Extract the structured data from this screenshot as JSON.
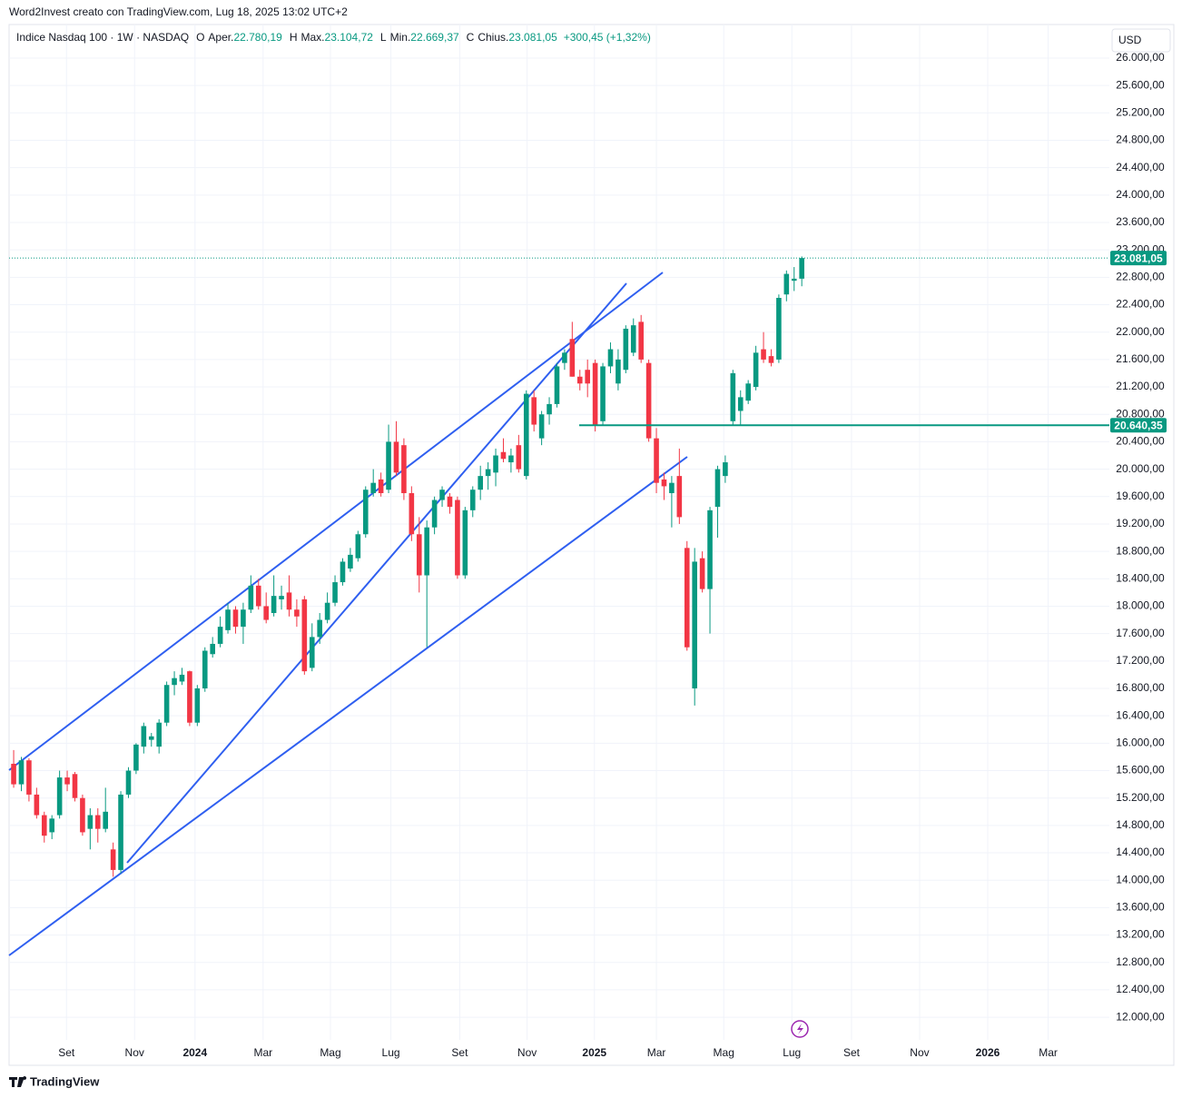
{
  "chart_data": {
    "type": "candlestick",
    "watermark": "Word2Invest creato con TradingView.com, Lug 18, 2025 13:02 UTC+2",
    "symbol": "Indice Nasdaq 100 · 1W · NASDAQ",
    "legend": [
      {
        "key": "O",
        "name": "Aper.",
        "label": "22.780,19"
      },
      {
        "key": "H",
        "name": "Max.",
        "label": "23.104,72"
      },
      {
        "key": "L",
        "name": "Min.",
        "label": "22.669,37"
      },
      {
        "key": "C",
        "name": "Chius.",
        "label": "23.081,05"
      }
    ],
    "change": "+300,45 (+1,32%)",
    "currency": "USD",
    "brand": "TradingView",
    "up_color": "#089981",
    "down_color": "#f23645",
    "grid": true,
    "candles": [
      {
        "o": 15700,
        "h": 15900,
        "l": 15350,
        "c": 15400
      },
      {
        "o": 15400,
        "h": 15800,
        "l": 15300,
        "c": 15750
      },
      {
        "o": 15750,
        "h": 15780,
        "l": 15150,
        "c": 15250
      },
      {
        "o": 15250,
        "h": 15350,
        "l": 14900,
        "c": 14950
      },
      {
        "o": 14950,
        "h": 15000,
        "l": 14550,
        "c": 14650
      },
      {
        "o": 14700,
        "h": 14950,
        "l": 14600,
        "c": 14900
      },
      {
        "o": 14950,
        "h": 15600,
        "l": 14900,
        "c": 15500
      },
      {
        "o": 15500,
        "h": 15600,
        "l": 15300,
        "c": 15400
      },
      {
        "o": 15550,
        "h": 15580,
        "l": 15150,
        "c": 15200
      },
      {
        "o": 15200,
        "h": 15250,
        "l": 14650,
        "c": 14700
      },
      {
        "o": 14750,
        "h": 15050,
        "l": 14450,
        "c": 14950
      },
      {
        "o": 14950,
        "h": 15050,
        "l": 14550,
        "c": 14750
      },
      {
        "o": 14750,
        "h": 15350,
        "l": 14700,
        "c": 15000
      },
      {
        "o": 14450,
        "h": 14550,
        "l": 14050,
        "c": 14150
      },
      {
        "o": 14150,
        "h": 15300,
        "l": 14100,
        "c": 15250
      },
      {
        "o": 15250,
        "h": 15650,
        "l": 15200,
        "c": 15600
      },
      {
        "o": 15600,
        "h": 16000,
        "l": 15550,
        "c": 15980
      },
      {
        "o": 15950,
        "h": 16300,
        "l": 15850,
        "c": 16250
      },
      {
        "o": 16050,
        "h": 16150,
        "l": 15950,
        "c": 16100
      },
      {
        "o": 15950,
        "h": 16350,
        "l": 15850,
        "c": 16300
      },
      {
        "o": 16300,
        "h": 16900,
        "l": 16250,
        "c": 16850
      },
      {
        "o": 16850,
        "h": 17050,
        "l": 16700,
        "c": 16950
      },
      {
        "o": 16900,
        "h": 17100,
        "l": 16850,
        "c": 17000
      },
      {
        "o": 17050,
        "h": 17060,
        "l": 16250,
        "c": 16300
      },
      {
        "o": 16300,
        "h": 16850,
        "l": 16250,
        "c": 16800
      },
      {
        "o": 16800,
        "h": 17400,
        "l": 16750,
        "c": 17350
      },
      {
        "o": 17300,
        "h": 17550,
        "l": 17250,
        "c": 17450
      },
      {
        "o": 17450,
        "h": 17850,
        "l": 17400,
        "c": 17700
      },
      {
        "o": 17650,
        "h": 18050,
        "l": 17600,
        "c": 17950
      },
      {
        "o": 17950,
        "h": 18000,
        "l": 17600,
        "c": 17700
      },
      {
        "o": 17700,
        "h": 18050,
        "l": 17450,
        "c": 17950
      },
      {
        "o": 17950,
        "h": 18450,
        "l": 17900,
        "c": 18300
      },
      {
        "o": 18300,
        "h": 18400,
        "l": 17950,
        "c": 18000
      },
      {
        "o": 18000,
        "h": 18200,
        "l": 17750,
        "c": 17800
      },
      {
        "o": 17900,
        "h": 18450,
        "l": 17850,
        "c": 18150
      },
      {
        "o": 18100,
        "h": 18300,
        "l": 17950,
        "c": 18150
      },
      {
        "o": 18200,
        "h": 18450,
        "l": 17850,
        "c": 17950
      },
      {
        "o": 17950,
        "h": 18100,
        "l": 17700,
        "c": 17850
      },
      {
        "o": 18100,
        "h": 18150,
        "l": 17000,
        "c": 17050
      },
      {
        "o": 17100,
        "h": 17750,
        "l": 17050,
        "c": 17550
      },
      {
        "o": 17550,
        "h": 17900,
        "l": 17450,
        "c": 17800
      },
      {
        "o": 17800,
        "h": 18200,
        "l": 17750,
        "c": 18050
      },
      {
        "o": 18050,
        "h": 18450,
        "l": 18000,
        "c": 18350
      },
      {
        "o": 18350,
        "h": 18700,
        "l": 18300,
        "c": 18650
      },
      {
        "o": 18550,
        "h": 18850,
        "l": 18500,
        "c": 18750
      },
      {
        "o": 18700,
        "h": 19100,
        "l": 18650,
        "c": 19050
      },
      {
        "o": 19050,
        "h": 19750,
        "l": 19000,
        "c": 19700
      },
      {
        "o": 19650,
        "h": 20000,
        "l": 19600,
        "c": 19800
      },
      {
        "o": 19850,
        "h": 19950,
        "l": 19600,
        "c": 19650
      },
      {
        "o": 19700,
        "h": 20650,
        "l": 19650,
        "c": 20400
      },
      {
        "o": 20400,
        "h": 20700,
        "l": 19900,
        "c": 19950
      },
      {
        "o": 20350,
        "h": 20450,
        "l": 19550,
        "c": 19650
      },
      {
        "o": 19650,
        "h": 19750,
        "l": 18950,
        "c": 19050
      },
      {
        "o": 19050,
        "h": 19300,
        "l": 18200,
        "c": 18450
      },
      {
        "o": 18450,
        "h": 19250,
        "l": 17400,
        "c": 19150
      },
      {
        "o": 19150,
        "h": 19600,
        "l": 19050,
        "c": 19550
      },
      {
        "o": 19550,
        "h": 19750,
        "l": 19450,
        "c": 19700
      },
      {
        "o": 19600,
        "h": 19650,
        "l": 19350,
        "c": 19450
      },
      {
        "o": 19550,
        "h": 19600,
        "l": 18400,
        "c": 18450
      },
      {
        "o": 18450,
        "h": 19450,
        "l": 18400,
        "c": 19400
      },
      {
        "o": 19400,
        "h": 19750,
        "l": 19300,
        "c": 19700
      },
      {
        "o": 19700,
        "h": 20050,
        "l": 19550,
        "c": 19900
      },
      {
        "o": 19900,
        "h": 20100,
        "l": 19700,
        "c": 20000
      },
      {
        "o": 19950,
        "h": 20300,
        "l": 19750,
        "c": 20200
      },
      {
        "o": 20250,
        "h": 20450,
        "l": 20100,
        "c": 20150
      },
      {
        "o": 20100,
        "h": 20300,
        "l": 19950,
        "c": 20200
      },
      {
        "o": 20350,
        "h": 20500,
        "l": 19950,
        "c": 20000
      },
      {
        "o": 19900,
        "h": 21150,
        "l": 19850,
        "c": 21100
      },
      {
        "o": 21050,
        "h": 21150,
        "l": 20550,
        "c": 20650
      },
      {
        "o": 20450,
        "h": 20850,
        "l": 20350,
        "c": 20800
      },
      {
        "o": 20800,
        "h": 21050,
        "l": 20650,
        "c": 20950
      },
      {
        "o": 20950,
        "h": 21550,
        "l": 20900,
        "c": 21500
      },
      {
        "o": 21550,
        "h": 21750,
        "l": 21450,
        "c": 21700
      },
      {
        "o": 21900,
        "h": 22150,
        "l": 21350,
        "c": 21350
      },
      {
        "o": 21350,
        "h": 21450,
        "l": 21150,
        "c": 21250
      },
      {
        "o": 21450,
        "h": 21600,
        "l": 21050,
        "c": 21250
      },
      {
        "o": 21550,
        "h": 21600,
        "l": 20550,
        "c": 20650
      },
      {
        "o": 20700,
        "h": 21550,
        "l": 20650,
        "c": 21500
      },
      {
        "o": 21500,
        "h": 21850,
        "l": 21400,
        "c": 21750
      },
      {
        "o": 21250,
        "h": 21750,
        "l": 21150,
        "c": 21600
      },
      {
        "o": 21450,
        "h": 22100,
        "l": 21400,
        "c": 22050
      },
      {
        "o": 21700,
        "h": 22200,
        "l": 21650,
        "c": 22100
      },
      {
        "o": 22150,
        "h": 22250,
        "l": 21550,
        "c": 21600
      },
      {
        "o": 21550,
        "h": 21600,
        "l": 20400,
        "c": 20450
      },
      {
        "o": 20450,
        "h": 20600,
        "l": 19650,
        "c": 19800
      },
      {
        "o": 19850,
        "h": 19950,
        "l": 19550,
        "c": 19750
      },
      {
        "o": 19650,
        "h": 19900,
        "l": 19150,
        "c": 19800
      },
      {
        "o": 19900,
        "h": 20300,
        "l": 19200,
        "c": 19300
      },
      {
        "o": 18850,
        "h": 18950,
        "l": 17350,
        "c": 17400
      },
      {
        "o": 16800,
        "h": 18850,
        "l": 16550,
        "c": 18650
      },
      {
        "o": 18700,
        "h": 18800,
        "l": 18200,
        "c": 18250
      },
      {
        "o": 18250,
        "h": 19450,
        "l": 17600,
        "c": 19400
      },
      {
        "o": 19450,
        "h": 20050,
        "l": 19000,
        "c": 20000
      },
      {
        "o": 19900,
        "h": 20200,
        "l": 19800,
        "c": 20100
      },
      {
        "o": 20700,
        "h": 21450,
        "l": 20650,
        "c": 21400
      },
      {
        "o": 20850,
        "h": 21150,
        "l": 20650,
        "c": 21050
      },
      {
        "o": 21000,
        "h": 21300,
        "l": 20950,
        "c": 21250
      },
      {
        "o": 21200,
        "h": 21800,
        "l": 21150,
        "c": 21700
      },
      {
        "o": 21750,
        "h": 22000,
        "l": 21550,
        "c": 21600
      },
      {
        "o": 21650,
        "h": 21750,
        "l": 21500,
        "c": 21550
      },
      {
        "o": 21600,
        "h": 22550,
        "l": 21550,
        "c": 22500
      },
      {
        "o": 22550,
        "h": 22900,
        "l": 22450,
        "c": 22850
      },
      {
        "o": 22750,
        "h": 22950,
        "l": 22600,
        "c": 22780
      },
      {
        "o": 22780.19,
        "h": 23104.72,
        "l": 22669.37,
        "c": 23081.05
      }
    ],
    "price_line": {
      "value": 23081.05,
      "label": "23.081,05",
      "color": "#089981"
    },
    "hline": {
      "value": 20640.35,
      "label": "20.640,35",
      "color": "#089981"
    },
    "xlim": [
      -0.6,
      143.2
    ],
    "ylim": [
      11670,
      26450
    ],
    "xticks": [
      {
        "value": 6.9,
        "label": "Set"
      },
      {
        "value": 15.8,
        "label": "Nov"
      },
      {
        "value": 23.7,
        "label": "2024"
      },
      {
        "value": 32.6,
        "label": "Mar"
      },
      {
        "value": 41.4,
        "label": "Mag"
      },
      {
        "value": 49.3,
        "label": "Lug"
      },
      {
        "value": 58.3,
        "label": "Set"
      },
      {
        "value": 67.1,
        "label": "Nov"
      },
      {
        "value": 75.9,
        "label": "2025"
      },
      {
        "value": 84.0,
        "label": "Mar"
      },
      {
        "value": 92.8,
        "label": "Mag"
      },
      {
        "value": 101.7,
        "label": "Lug"
      },
      {
        "value": 109.5,
        "label": "Set"
      },
      {
        "value": 118.4,
        "label": "Nov"
      },
      {
        "value": 127.3,
        "label": "2026"
      },
      {
        "value": 135.2,
        "label": "Mar"
      }
    ],
    "yticks": [
      {
        "value": 12000,
        "label": "12.000,00"
      },
      {
        "value": 12400,
        "label": "12.400,00"
      },
      {
        "value": 12800,
        "label": "12.800,00"
      },
      {
        "value": 13200,
        "label": "13.200,00"
      },
      {
        "value": 13600,
        "label": "13.600,00"
      },
      {
        "value": 14000,
        "label": "14.000,00"
      },
      {
        "value": 14400,
        "label": "14.400,00"
      },
      {
        "value": 14800,
        "label": "14.800,00"
      },
      {
        "value": 15200,
        "label": "15.200,00"
      },
      {
        "value": 15600,
        "label": "15.600,00"
      },
      {
        "value": 16000,
        "label": "16.000,00"
      },
      {
        "value": 16400,
        "label": "16.400,00"
      },
      {
        "value": 16800,
        "label": "16.800,00"
      },
      {
        "value": 17200,
        "label": "17.200,00"
      },
      {
        "value": 17600,
        "label": "17.600,00"
      },
      {
        "value": 18000,
        "label": "18.000,00"
      },
      {
        "value": 18400,
        "label": "18.400,00"
      },
      {
        "value": 18800,
        "label": "18.800,00"
      },
      {
        "value": 19200,
        "label": "19.200,00"
      },
      {
        "value": 19600,
        "label": "19.600,00"
      },
      {
        "value": 20000,
        "label": "20.000,00"
      },
      {
        "value": 20400,
        "label": "20.400,00"
      },
      {
        "value": 20800,
        "label": "20.800,00"
      },
      {
        "value": 21200,
        "label": "21.200,00"
      },
      {
        "value": 21600,
        "label": "21.600,00"
      },
      {
        "value": 22000,
        "label": "22.000,00"
      },
      {
        "value": 22400,
        "label": "22.400,00"
      },
      {
        "value": 22800,
        "label": "22.800,00"
      },
      {
        "value": 23200,
        "label": "23.200,00"
      },
      {
        "value": 23600,
        "label": "23.600,00"
      },
      {
        "value": 24000,
        "label": "24.000,00"
      },
      {
        "value": 24400,
        "label": "24.400,00"
      },
      {
        "value": 24800,
        "label": "24.800,00"
      },
      {
        "value": 25200,
        "label": "25.200,00"
      },
      {
        "value": 25600,
        "label": "25.600,00"
      },
      {
        "value": 26000,
        "label": "26.000,00"
      }
    ]
  }
}
